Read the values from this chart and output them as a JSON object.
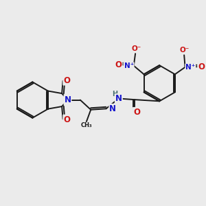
{
  "bg_color": "#ebebeb",
  "bond_color": "#1a1a1a",
  "bond_width": 1.4,
  "atom_colors": {
    "C": "#1a1a1a",
    "N": "#1515cc",
    "O": "#cc1515",
    "H": "#4a7070"
  },
  "font_size": 7.5,
  "fig_width": 3.0,
  "fig_height": 3.0,
  "xlim": [
    0,
    10
  ],
  "ylim": [
    0,
    10
  ]
}
